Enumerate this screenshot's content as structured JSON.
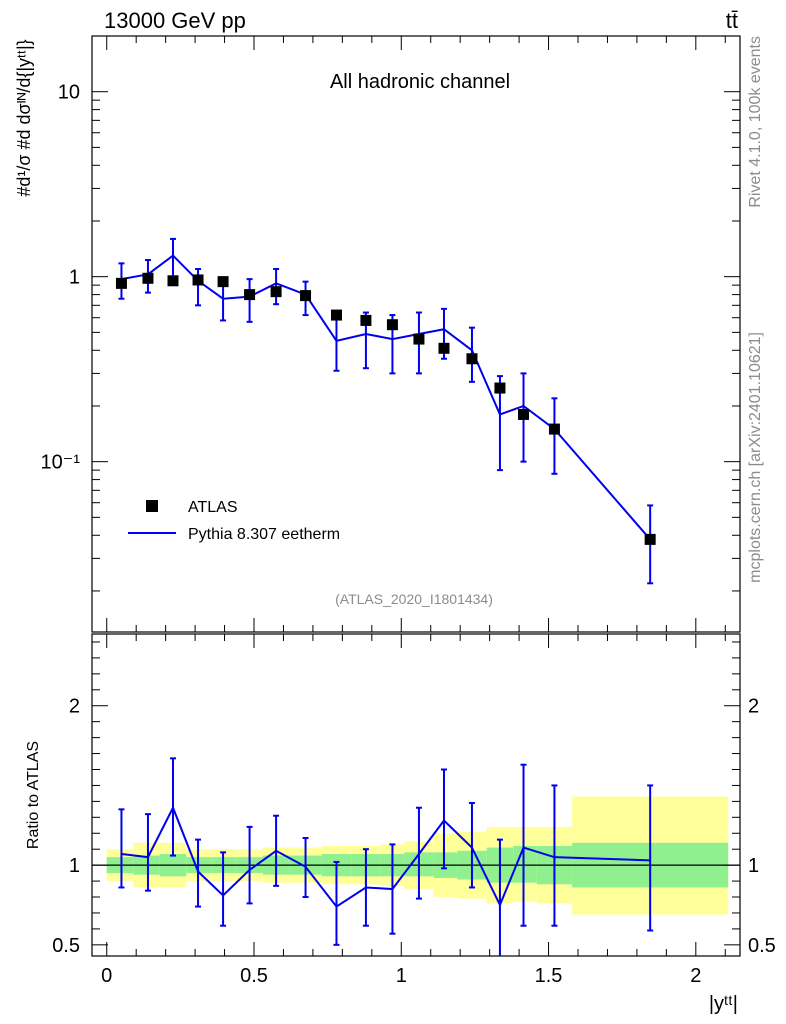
{
  "header": {
    "energy": "13000 GeV pp",
    "process": "tt̄"
  },
  "side_labels": {
    "rivet": "Rivet 4.1.0,  100k events",
    "mcplots": "mcplots.cern.ch [arXiv:2401.10621]"
  },
  "chart_data": [
    {
      "type": "scatter",
      "title": "All hadronic channel",
      "ylabel": "#d¹/σ #d dσᴵᴺ/d{|yᵗᵗ|}",
      "yscale": "log",
      "ylim": [
        0.012,
        20
      ],
      "xlim": [
        -0.05,
        2.15
      ],
      "yticks": [
        {
          "v": 10,
          "label": "10"
        },
        {
          "v": 1,
          "label": "1"
        },
        {
          "v": 0.1,
          "label": "10⁻¹"
        }
      ],
      "watermark": "(ATLAS_2020_I1801434)",
      "legend": {
        "position": "bottom-left",
        "entries": [
          "ATLAS",
          "Pythia 8.307 eetherm"
        ]
      },
      "colors": {
        "mc": "#0000ee",
        "data": "#000000"
      },
      "x": [
        0.05,
        0.14,
        0.225,
        0.31,
        0.395,
        0.485,
        0.575,
        0.675,
        0.78,
        0.88,
        0.97,
        1.06,
        1.145,
        1.24,
        1.335,
        1.415,
        1.52,
        1.845
      ],
      "series": [
        {
          "name": "ATLAS",
          "values": [
            0.92,
            0.98,
            0.95,
            0.96,
            0.94,
            0.8,
            0.83,
            0.79,
            0.62,
            0.58,
            0.55,
            0.46,
            0.41,
            0.36,
            0.25,
            0.18,
            0.15,
            0.038
          ]
        },
        {
          "name": "Pythia 8.307 eetherm",
          "values": [
            0.97,
            1.03,
            1.3,
            0.95,
            0.76,
            0.78,
            0.92,
            0.8,
            0.45,
            0.49,
            0.46,
            0.49,
            0.52,
            0.4,
            0.18,
            0.2,
            0.15,
            0.038
          ],
          "err_low": [
            0.76,
            0.82,
            1.0,
            0.7,
            0.58,
            0.57,
            0.71,
            0.62,
            0.31,
            0.32,
            0.3,
            0.3,
            0.36,
            0.27,
            0.09,
            0.1,
            0.086,
            0.022
          ],
          "err_high": [
            1.18,
            1.23,
            1.6,
            1.1,
            0.98,
            0.97,
            1.1,
            0.94,
            0.6,
            0.64,
            0.62,
            0.64,
            0.67,
            0.53,
            0.29,
            0.3,
            0.22,
            0.058
          ]
        }
      ]
    },
    {
      "type": "line",
      "ylabel": "Ratio to ATLAS",
      "xlabel": "|yᵗᵗ|",
      "ylim": [
        0.43,
        2.45
      ],
      "yticks": [
        {
          "v": 2,
          "label": "2"
        },
        {
          "v": 1,
          "label": "1"
        },
        {
          "v": 0.5,
          "label": "0.5"
        }
      ],
      "xticks": [
        {
          "v": 0,
          "label": "0"
        },
        {
          "v": 0.5,
          "label": "0.5"
        },
        {
          "v": 1,
          "label": "1"
        },
        {
          "v": 1.5,
          "label": "1.5"
        },
        {
          "v": 2,
          "label": "2"
        }
      ],
      "bands": {
        "edges": [
          0.0,
          0.09,
          0.18,
          0.27,
          0.355,
          0.44,
          0.53,
          0.62,
          0.73,
          0.83,
          0.93,
          1.01,
          1.11,
          1.19,
          1.29,
          1.38,
          1.46,
          1.58,
          2.11
        ],
        "inner_low": [
          0.95,
          0.94,
          0.93,
          0.95,
          0.95,
          0.95,
          0.94,
          0.94,
          0.93,
          0.93,
          0.93,
          0.93,
          0.92,
          0.91,
          0.89,
          0.89,
          0.88,
          0.86
        ],
        "inner_high": [
          1.05,
          1.06,
          1.07,
          1.05,
          1.05,
          1.05,
          1.06,
          1.06,
          1.07,
          1.07,
          1.07,
          1.08,
          1.08,
          1.09,
          1.11,
          1.12,
          1.12,
          1.14
        ],
        "outer_low": [
          0.9,
          0.86,
          0.86,
          0.9,
          0.9,
          0.9,
          0.89,
          0.89,
          0.88,
          0.88,
          0.87,
          0.85,
          0.8,
          0.79,
          0.76,
          0.77,
          0.76,
          0.69
        ],
        "outer_high": [
          1.1,
          1.14,
          1.14,
          1.1,
          1.1,
          1.1,
          1.11,
          1.11,
          1.12,
          1.12,
          1.13,
          1.15,
          1.2,
          1.21,
          1.24,
          1.24,
          1.24,
          1.43
        ],
        "inner_color": "#90f090",
        "outer_color": "#ffff99"
      },
      "ratio": [
        1.07,
        1.05,
        1.36,
        0.96,
        0.81,
        0.97,
        1.09,
        0.99,
        0.74,
        0.86,
        0.85,
        1.07,
        1.28,
        1.11,
        0.75,
        1.11,
        1.05,
        1.03
      ],
      "ratio_low": [
        0.86,
        0.84,
        1.06,
        0.74,
        0.62,
        0.76,
        0.87,
        0.8,
        0.5,
        0.62,
        0.57,
        0.79,
        0.98,
        0.86,
        0.36,
        0.62,
        0.62,
        0.59
      ],
      "ratio_high": [
        1.35,
        1.32,
        1.67,
        1.16,
        1.08,
        1.24,
        1.31,
        1.17,
        1.02,
        1.1,
        1.13,
        1.36,
        1.6,
        1.39,
        1.16,
        1.63,
        1.5,
        1.5
      ]
    }
  ]
}
